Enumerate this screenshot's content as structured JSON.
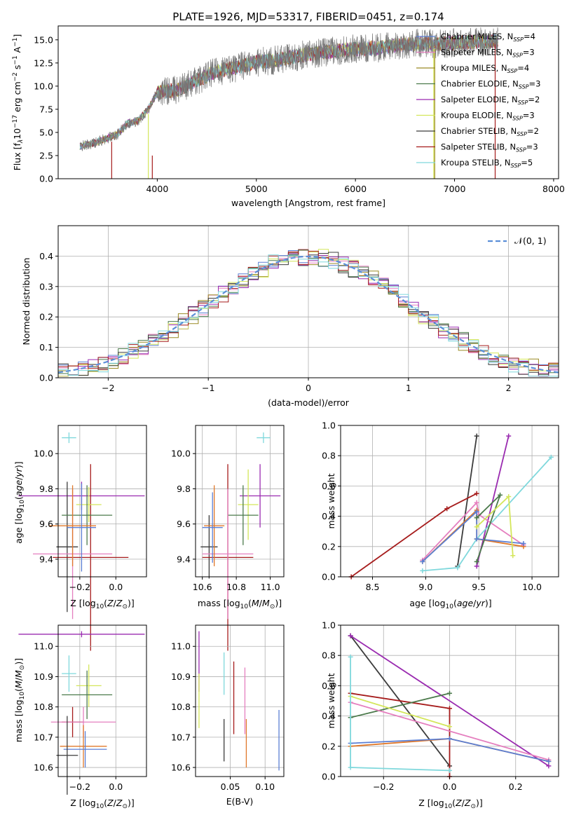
{
  "colors": {
    "Chabrier MILES": "#5b7fd4",
    "Salpeter MILES": "#e57fbf",
    "Kroupa MILES": "#9a8a24",
    "Chabrier ELODIE": "#4b7a4b",
    "Salpeter ELODIE": "#9a2bb0",
    "Kroupa ELODIE": "#d4e65a",
    "Chabrier STELIB": "#3c3c3c",
    "Salpeter STELIB": "#a61c1c",
    "Kroupa STELIB": "#7fd8dc",
    "orange": "#e0782a",
    "normal": "#5b8fd8"
  },
  "chart_data": [
    {
      "id": "spectrum",
      "type": "line",
      "title": "PLATE=1926, MJD=53317, FIBERID=0451, z=0.174",
      "xlabel": "wavelength [Angstrom, rest frame]",
      "ylabel": "Flux [f",
      "ylabel_sub": "λ",
      "ylabel_rest": "10",
      "ylabel_exp1": "−17",
      "ylabel_mid": " erg cm",
      "ylabel_exp2": "−2",
      "ylabel_mid2": " s",
      "ylabel_exp3": "−1",
      "ylabel_mid3": " A",
      "ylabel_exp4": "−1",
      "ylabel_end": "]",
      "xlim": [
        3000,
        8050
      ],
      "ylim": [
        0,
        16.5
      ],
      "xticks": [
        "4000",
        "5000",
        "6000",
        "7000",
        "8000"
      ],
      "yticks": [
        "0.0",
        "2.5",
        "5.0",
        "7.5",
        "10.0",
        "12.5",
        "15.0"
      ],
      "grid": false,
      "legend_position": "upper-right",
      "legend": [
        {
          "name": "Chabrier MILES",
          "nssp": "4"
        },
        {
          "name": "Salpeter MILES",
          "nssp": "3"
        },
        {
          "name": "Kroupa MILES",
          "nssp": "4"
        },
        {
          "name": "Chabrier ELODIE",
          "nssp": "3"
        },
        {
          "name": "Salpeter ELODIE",
          "nssp": "2"
        },
        {
          "name": "Kroupa ELODIE",
          "nssp": "3"
        },
        {
          "name": "Chabrier STELIB",
          "nssp": "2"
        },
        {
          "name": "Salpeter STELIB",
          "nssp": "3"
        },
        {
          "name": "Kroupa STELIB",
          "nssp": "5"
        }
      ],
      "continuum": [
        [
          3200,
          3.4
        ],
        [
          3400,
          4.0
        ],
        [
          3600,
          4.8
        ],
        [
          3700,
          6.0
        ],
        [
          3800,
          6.2
        ],
        [
          3900,
          7.4
        ],
        [
          4000,
          9.3
        ],
        [
          4200,
          9.6
        ],
        [
          4400,
          10.6
        ],
        [
          4600,
          11.6
        ],
        [
          4800,
          12.0
        ],
        [
          5000,
          12.6
        ],
        [
          5200,
          12.8
        ],
        [
          5500,
          13.4
        ],
        [
          5800,
          13.8
        ],
        [
          6000,
          14.0
        ],
        [
          6300,
          14.2
        ],
        [
          6600,
          14.6
        ],
        [
          6900,
          14.6
        ],
        [
          7200,
          14.8
        ],
        [
          7450,
          14.8
        ]
      ]
    },
    {
      "id": "residuals",
      "type": "line",
      "xlabel": "(data-model)/error",
      "ylabel": "Normed distribution",
      "xlim": [
        -2.5,
        2.5
      ],
      "ylim": [
        0,
        0.5
      ],
      "xticks": [
        "−2",
        "−1",
        "0",
        "1",
        "2"
      ],
      "yticks": [
        "0.0",
        "0.1",
        "0.2",
        "0.3",
        "0.4"
      ],
      "grid": true,
      "legend_position": "upper-right",
      "legend": [
        "𝒩(0, 1)"
      ]
    },
    {
      "id": "age-vs-Z",
      "type": "scatter",
      "xlabel": "Z [log",
      "ylabel": "age  [log",
      "xlim": [
        -0.32,
        0.17
      ],
      "ylim": [
        9.3,
        10.16
      ],
      "xticks": [
        "−0.2",
        "0.0"
      ],
      "yticks": [
        "9.4",
        "9.6",
        "9.8",
        "10.0"
      ],
      "grid": true
    },
    {
      "id": "age-vs-mass",
      "type": "scatter",
      "xlabel": "mass [log",
      "xlim": [
        10.56,
        11.08
      ],
      "ylim": [
        9.3,
        10.16
      ],
      "xticks": [
        "10.6",
        "10.8",
        "11.0"
      ],
      "yticks": [
        "9.4",
        "9.6",
        "9.8",
        "10.0"
      ],
      "grid": true
    },
    {
      "id": "massweight-vs-age",
      "type": "line",
      "xlabel": "age  [log",
      "ylabel": "mass weight",
      "xlim": [
        8.2,
        10.25
      ],
      "ylim": [
        0,
        1
      ],
      "xticks": [
        "8.5",
        "9.0",
        "9.5",
        "10.0"
      ],
      "yticks": [
        "0.0",
        "0.2",
        "0.4",
        "0.6",
        "0.8",
        "1.0"
      ],
      "grid": true,
      "series": [
        {
          "key": "Chabrier STELIB",
          "points": [
            [
              9.3,
              0.07
            ],
            [
              9.48,
              0.93
            ]
          ]
        },
        {
          "key": "Salpeter STELIB",
          "points": [
            [
              8.3,
              0.0
            ],
            [
              9.2,
              0.45
            ],
            [
              9.48,
              0.55
            ]
          ]
        },
        {
          "key": "Salpeter ELODIE",
          "points": [
            [
              9.48,
              0.07
            ],
            [
              9.78,
              0.93
            ]
          ]
        },
        {
          "key": "Kroupa STELIB",
          "points": [
            [
              8.97,
              0.04
            ],
            [
              9.3,
              0.06
            ],
            [
              9.48,
              0.25
            ],
            [
              10.18,
              0.79
            ]
          ]
        },
        {
          "key": "Salpeter MILES",
          "points": [
            [
              8.97,
              0.11
            ],
            [
              9.48,
              0.49
            ],
            [
              9.5,
              0.41
            ],
            [
              9.92,
              0.21
            ]
          ]
        },
        {
          "key": "orange",
          "points": [
            [
              8.97,
              0.1
            ],
            [
              9.48,
              0.44
            ],
            [
              9.48,
              0.25
            ],
            [
              9.92,
              0.2
            ]
          ]
        },
        {
          "key": "Chabrier MILES",
          "points": [
            [
              8.97,
              0.1
            ],
            [
              9.48,
              0.43
            ],
            [
              9.48,
              0.25
            ],
            [
              9.92,
              0.22
            ]
          ]
        },
        {
          "key": "Chabrier ELODIE",
          "points": [
            [
              9.48,
              0.39
            ],
            [
              9.7,
              0.54
            ],
            [
              9.48,
              0.1
            ]
          ]
        },
        {
          "key": "Kroupa ELODIE",
          "points": [
            [
              9.48,
              0.33
            ],
            [
              9.78,
              0.53
            ],
            [
              9.82,
              0.14
            ]
          ]
        }
      ]
    },
    {
      "id": "mass-vs-Z",
      "type": "scatter",
      "xlabel": "Z [log",
      "ylabel": "mass [log",
      "xlim": [
        -0.32,
        0.17
      ],
      "ylim": [
        10.57,
        11.07
      ],
      "xticks": [
        "−0.2",
        "0.0"
      ],
      "yticks": [
        "10.6",
        "10.7",
        "10.8",
        "10.9",
        "11.0"
      ],
      "grid": true
    },
    {
      "id": "mass-vs-ebv",
      "type": "scatter",
      "xlabel": "E(B-V)",
      "xlim": [
        0.0,
        0.127
      ],
      "ylim": [
        10.57,
        11.07
      ],
      "xticks": [
        "0.05",
        "0.10"
      ],
      "yticks": [
        "10.6",
        "10.7",
        "10.8",
        "10.9",
        "11.0"
      ],
      "grid": true
    },
    {
      "id": "massweight-vs-Z",
      "type": "line",
      "xlabel": "Z [log",
      "ylabel": "mass weight",
      "xlim": [
        -0.33,
        0.33
      ],
      "ylim": [
        0,
        1
      ],
      "xticks": [
        "−0.2",
        "0.0",
        "0.2"
      ],
      "yticks": [
        "0.0",
        "0.2",
        "0.4",
        "0.6",
        "0.8",
        "1.0"
      ],
      "grid": true,
      "series": [
        {
          "key": "Chabrier STELIB",
          "points": [
            [
              -0.3,
              0.93
            ],
            [
              0.0,
              0.07
            ]
          ]
        },
        {
          "key": "Salpeter ELODIE",
          "points": [
            [
              -0.3,
              0.93
            ],
            [
              0.3,
              0.07
            ]
          ]
        },
        {
          "key": "Salpeter STELIB",
          "points": [
            [
              -0.3,
              0.55
            ],
            [
              0.0,
              0.45
            ],
            [
              0.0,
              0.0
            ]
          ]
        },
        {
          "key": "Chabrier ELODIE",
          "points": [
            [
              -0.3,
              0.39
            ],
            [
              0.0,
              0.55
            ]
          ]
        },
        {
          "key": "Kroupa ELODIE",
          "points": [
            [
              -0.3,
              0.53
            ],
            [
              0.0,
              0.33
            ]
          ]
        },
        {
          "key": "Salpeter MILES",
          "points": [
            [
              -0.3,
              0.49
            ],
            [
              0.3,
              0.11
            ]
          ]
        },
        {
          "key": "orange",
          "points": [
            [
              -0.3,
              0.2
            ],
            [
              0.0,
              0.25
            ],
            [
              0.3,
              0.1
            ]
          ]
        },
        {
          "key": "Chabrier MILES",
          "points": [
            [
              -0.3,
              0.22
            ],
            [
              0.0,
              0.25
            ],
            [
              0.3,
              0.1
            ]
          ]
        },
        {
          "key": "Kroupa STELIB",
          "points": [
            [
              -0.3,
              0.79
            ],
            [
              -0.3,
              0.06
            ],
            [
              0.0,
              0.04
            ]
          ]
        }
      ]
    }
  ]
}
